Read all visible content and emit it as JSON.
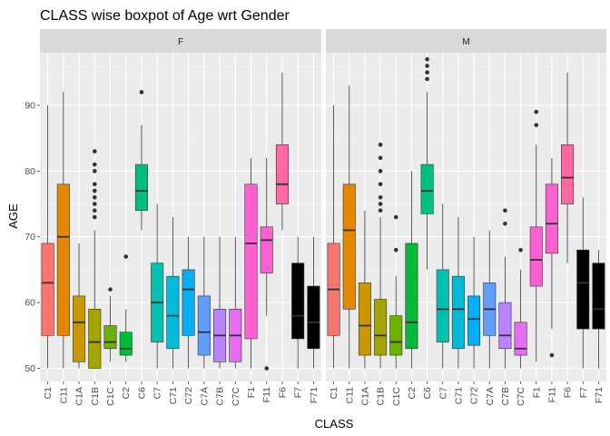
{
  "chart_data": {
    "type": "boxplot",
    "title": "CLASS wise boxpot of Age wrt Gender",
    "xlabel": "CLASS",
    "ylabel": "AGE",
    "ylim": [
      48,
      98
    ],
    "yticks": [
      50,
      60,
      70,
      80,
      90
    ],
    "facets": [
      "F",
      "M"
    ],
    "categories": [
      "C1",
      "C11",
      "C1A",
      "C1B",
      "C1C",
      "C2",
      "C6",
      "C7",
      "C71",
      "C72",
      "C7A",
      "C7B",
      "C7C",
      "F1",
      "F11",
      "F6",
      "F7",
      "F71"
    ],
    "colors": [
      "#F8766D",
      "#E58700",
      "#C99800",
      "#A3A500",
      "#6BB100",
      "#00BA38",
      "#00BF7D",
      "#00C0AF",
      "#00BCD8",
      "#00B0F6",
      "#619CFF",
      "#B983FF",
      "#E76BF3",
      "#FD61D1",
      "#FF67A4"
    ],
    "panels": [
      {
        "facet": "F",
        "boxes": [
          {
            "category": "C1",
            "color_index": 0,
            "min": 50,
            "q1": 55,
            "median": 63,
            "q3": 69,
            "max": 90,
            "outliers": []
          },
          {
            "category": "C11",
            "color_index": 1,
            "min": 50,
            "q1": 55,
            "median": 70,
            "q3": 78,
            "max": 92,
            "outliers": []
          },
          {
            "category": "C1A",
            "color_index": 2,
            "min": 50,
            "q1": 51,
            "median": 57,
            "q3": 61,
            "max": 69,
            "outliers": []
          },
          {
            "category": "C1B",
            "color_index": 3,
            "min": 50,
            "q1": 50,
            "median": 54,
            "q3": 59,
            "max": 71,
            "outliers": [
              73,
              74,
              75,
              76,
              77,
              78,
              80,
              81,
              83
            ]
          },
          {
            "category": "C1C",
            "color_index": 4,
            "min": 51,
            "q1": 53,
            "median": 54,
            "q3": 56.5,
            "max": 61,
            "outliers": [
              62
            ]
          },
          {
            "category": "C2",
            "color_index": 5,
            "min": 51,
            "q1": 52,
            "median": 53,
            "q3": 55.5,
            "max": 59,
            "outliers": [
              67
            ]
          },
          {
            "category": "C6",
            "color_index": 6,
            "min": 71,
            "q1": 74,
            "median": 77,
            "q3": 81,
            "max": 87,
            "outliers": [
              92
            ]
          },
          {
            "category": "C7",
            "color_index": 7,
            "min": 50,
            "q1": 54,
            "median": 60,
            "q3": 66,
            "max": 75,
            "outliers": []
          },
          {
            "category": "C71",
            "color_index": 8,
            "min": 50,
            "q1": 53,
            "median": 58,
            "q3": 64,
            "max": 73,
            "outliers": []
          },
          {
            "category": "C72",
            "color_index": 9,
            "min": 50,
            "q1": 55,
            "median": 62,
            "q3": 65,
            "max": 70,
            "outliers": []
          },
          {
            "category": "C7A",
            "color_index": 10,
            "min": 50,
            "q1": 52,
            "median": 55.5,
            "q3": 61,
            "max": 70,
            "outliers": []
          },
          {
            "category": "C7B",
            "color_index": 11,
            "min": 50,
            "q1": 51,
            "median": 55,
            "q3": 59,
            "max": 70,
            "outliers": []
          },
          {
            "category": "C7C",
            "color_index": 12,
            "min": 50,
            "q1": 51,
            "median": 55,
            "q3": 59,
            "max": 70,
            "outliers": []
          },
          {
            "category": "F1",
            "color_index": 13,
            "min": 50,
            "q1": 54.5,
            "median": 69,
            "q3": 78,
            "max": 82,
            "outliers": []
          },
          {
            "category": "F11",
            "color_index": 13,
            "min": 58,
            "q1": 64.5,
            "median": 69.5,
            "q3": 71.5,
            "max": 82,
            "outliers": [
              50
            ]
          },
          {
            "category": "F6",
            "color_index": 14,
            "min": 71,
            "q1": 75,
            "median": 78,
            "q3": 84,
            "max": 95,
            "outliers": []
          },
          {
            "category": "F7",
            "color_index": 15,
            "min": 50,
            "q1": 54.5,
            "median": 58,
            "q3": 66,
            "max": 70,
            "outliers": []
          },
          {
            "category": "F71",
            "color_index": 15,
            "min": 50,
            "q1": 53,
            "median": 57,
            "q3": 62.5,
            "max": 70,
            "outliers": []
          }
        ]
      },
      {
        "facet": "M",
        "boxes": [
          {
            "category": "C1",
            "color_index": 0,
            "min": 50,
            "q1": 55,
            "median": 62,
            "q3": 69,
            "max": 90,
            "outliers": []
          },
          {
            "category": "C11",
            "color_index": 1,
            "min": 50,
            "q1": 59,
            "median": 71,
            "q3": 78,
            "max": 93,
            "outliers": []
          },
          {
            "category": "C1A",
            "color_index": 2,
            "min": 50,
            "q1": 52,
            "median": 56.5,
            "q3": 63,
            "max": 74,
            "outliers": []
          },
          {
            "category": "C1B",
            "color_index": 3,
            "min": 50,
            "q1": 52,
            "median": 55,
            "q3": 60.5,
            "max": 73,
            "outliers": [
              74,
              75,
              76,
              78,
              80,
              82,
              84
            ]
          },
          {
            "category": "C1C",
            "color_index": 4,
            "min": 50,
            "q1": 52,
            "median": 54,
            "q3": 58,
            "max": 64,
            "outliers": [
              68,
              73
            ]
          },
          {
            "category": "C2",
            "color_index": 5,
            "min": 50,
            "q1": 53,
            "median": 57,
            "q3": 69,
            "max": 80,
            "outliers": []
          },
          {
            "category": "C6",
            "color_index": 6,
            "min": 65,
            "q1": 73.5,
            "median": 77,
            "q3": 81,
            "max": 92,
            "outliers": [
              94,
              95,
              96,
              97
            ]
          },
          {
            "category": "C7",
            "color_index": 7,
            "min": 50,
            "q1": 54,
            "median": 59,
            "q3": 65,
            "max": 75,
            "outliers": []
          },
          {
            "category": "C71",
            "color_index": 8,
            "min": 50,
            "q1": 53,
            "median": 59,
            "q3": 64,
            "max": 73,
            "outliers": []
          },
          {
            "category": "C72",
            "color_index": 9,
            "min": 50,
            "q1": 53.5,
            "median": 57.5,
            "q3": 61,
            "max": 70,
            "outliers": []
          },
          {
            "category": "C7A",
            "color_index": 10,
            "min": 50,
            "q1": 55,
            "median": 59,
            "q3": 63,
            "max": 71,
            "outliers": []
          },
          {
            "category": "C7B",
            "color_index": 11,
            "min": 50,
            "q1": 53,
            "median": 55,
            "q3": 60,
            "max": 67,
            "outliers": [
              72,
              74
            ]
          },
          {
            "category": "C7C",
            "color_index": 12,
            "min": 50,
            "q1": 52,
            "median": 53,
            "q3": 57,
            "max": 65,
            "outliers": [
              68
            ]
          },
          {
            "category": "F1",
            "color_index": 13,
            "min": 51,
            "q1": 62.5,
            "median": 66.5,
            "q3": 71.5,
            "max": 84,
            "outliers": [
              87,
              89
            ]
          },
          {
            "category": "F11",
            "color_index": 13,
            "min": 56,
            "q1": 67.5,
            "median": 72,
            "q3": 78,
            "max": 82,
            "outliers": [
              52
            ]
          },
          {
            "category": "F6",
            "color_index": 14,
            "min": 66,
            "q1": 75,
            "median": 79,
            "q3": 84,
            "max": 95,
            "outliers": []
          },
          {
            "category": "F7",
            "color_index": 15,
            "min": 50,
            "q1": 56,
            "median": 63,
            "q3": 68,
            "max": 76,
            "outliers": []
          },
          {
            "category": "F71",
            "color_index": 15,
            "min": 50,
            "q1": 56,
            "median": 59,
            "q3": 66,
            "max": 68,
            "outliers": []
          }
        ]
      }
    ]
  }
}
